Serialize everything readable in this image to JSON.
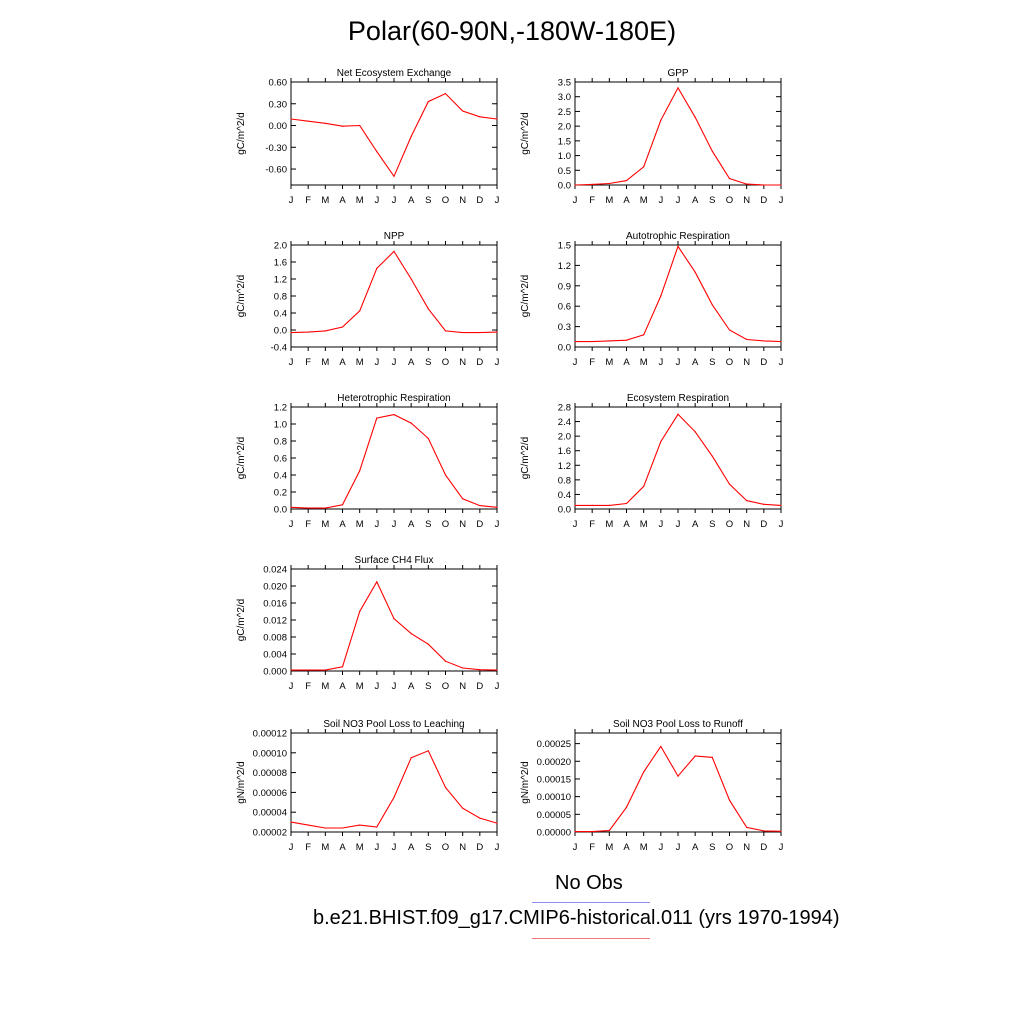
{
  "title": "Polar(60-90N,-180W-180E)",
  "legend": {
    "obs": "No Obs",
    "model": "b.e21.BHIST.f09_g17.CMIP6-historical.011 (yrs 1970-1994)",
    "obs_color": "#8c8cf0",
    "model_color": "#f07878"
  },
  "series_color": "#ff0000",
  "chart_data": [
    {
      "type": "line",
      "title": "Net Ecosystem Exchange",
      "ylabel": "gC/m^2/d",
      "xlabel": "",
      "categories": [
        "J",
        "F",
        "M",
        "A",
        "M",
        "J",
        "J",
        "A",
        "S",
        "O",
        "N",
        "D",
        "J"
      ],
      "ylim": [
        -0.82,
        0.6
      ],
      "yticks": [
        0.6,
        0.3,
        0.0,
        -0.3,
        -0.6
      ],
      "ytick_labels": [
        "0.60",
        "0.30",
        "0.00",
        "-0.30",
        "-0.60"
      ],
      "values": [
        0.09,
        0.06,
        0.03,
        -0.01,
        0.0,
        -0.36,
        -0.7,
        -0.15,
        0.33,
        0.44,
        0.2,
        0.12,
        0.09
      ]
    },
    {
      "type": "line",
      "title": "GPP",
      "ylabel": "gC/m^2/d",
      "xlabel": "",
      "categories": [
        "J",
        "F",
        "M",
        "A",
        "M",
        "J",
        "J",
        "A",
        "S",
        "O",
        "N",
        "D",
        "J"
      ],
      "ylim": [
        0,
        3.5
      ],
      "yticks": [
        0,
        0.5,
        1.0,
        1.5,
        2.0,
        2.5,
        3.0,
        3.5
      ],
      "ytick_labels": [
        "0.0",
        "0.5",
        "1.0",
        "1.5",
        "2.0",
        "2.5",
        "3.0",
        "3.5"
      ],
      "values": [
        0.0,
        0.02,
        0.05,
        0.15,
        0.62,
        2.2,
        3.3,
        2.3,
        1.15,
        0.22,
        0.03,
        0.0,
        0.0
      ]
    },
    {
      "type": "line",
      "title": "NPP",
      "ylabel": "gC/m^2/d",
      "xlabel": "",
      "categories": [
        "J",
        "F",
        "M",
        "A",
        "M",
        "J",
        "J",
        "A",
        "S",
        "O",
        "N",
        "D",
        "J"
      ],
      "ylim": [
        -0.4,
        2.0
      ],
      "yticks": [
        -0.4,
        0.0,
        0.4,
        0.8,
        1.2,
        1.6,
        2.0
      ],
      "ytick_labels": [
        "-0.4",
        "0.0",
        "0.4",
        "0.8",
        "1.2",
        "1.6",
        "2.0"
      ],
      "values": [
        -0.06,
        -0.05,
        -0.02,
        0.07,
        0.45,
        1.45,
        1.85,
        1.2,
        0.5,
        -0.02,
        -0.06,
        -0.06,
        -0.05
      ]
    },
    {
      "type": "line",
      "title": "Autotrophic Respiration",
      "ylabel": "gC/m^2/d",
      "xlabel": "",
      "categories": [
        "J",
        "F",
        "M",
        "A",
        "M",
        "J",
        "J",
        "A",
        "S",
        "O",
        "N",
        "D",
        "J"
      ],
      "ylim": [
        0,
        1.5
      ],
      "yticks": [
        0,
        0.3,
        0.6,
        0.9,
        1.2,
        1.5
      ],
      "ytick_labels": [
        "0.0",
        "0.3",
        "0.6",
        "0.9",
        "1.2",
        "1.5"
      ],
      "values": [
        0.08,
        0.08,
        0.09,
        0.1,
        0.18,
        0.75,
        1.48,
        1.1,
        0.62,
        0.25,
        0.11,
        0.09,
        0.08
      ]
    },
    {
      "type": "line",
      "title": "Heterotrophic Respiration",
      "ylabel": "gC/m^2/d",
      "xlabel": "",
      "categories": [
        "J",
        "F",
        "M",
        "A",
        "M",
        "J",
        "J",
        "A",
        "S",
        "O",
        "N",
        "D",
        "J"
      ],
      "ylim": [
        0,
        1.2
      ],
      "yticks": [
        0,
        0.2,
        0.4,
        0.6,
        0.8,
        1.0,
        1.2
      ],
      "ytick_labels": [
        "0.0",
        "0.2",
        "0.4",
        "0.6",
        "0.8",
        "1.0",
        "1.2"
      ],
      "values": [
        0.02,
        0.01,
        0.01,
        0.05,
        0.45,
        1.07,
        1.11,
        1.01,
        0.83,
        0.4,
        0.12,
        0.04,
        0.02
      ]
    },
    {
      "type": "line",
      "title": "Ecosystem Respiration",
      "ylabel": "gC/m^2/d",
      "xlabel": "",
      "categories": [
        "J",
        "F",
        "M",
        "A",
        "M",
        "J",
        "J",
        "A",
        "S",
        "O",
        "N",
        "D",
        "J"
      ],
      "ylim": [
        0,
        2.8
      ],
      "yticks": [
        0,
        0.4,
        0.8,
        1.2,
        1.6,
        2.0,
        2.4,
        2.8
      ],
      "ytick_labels": [
        "0.0",
        "0.4",
        "0.8",
        "1.2",
        "1.6",
        "2.0",
        "2.4",
        "2.8"
      ],
      "values": [
        0.1,
        0.1,
        0.1,
        0.15,
        0.62,
        1.85,
        2.6,
        2.12,
        1.45,
        0.68,
        0.23,
        0.13,
        0.1
      ]
    },
    {
      "type": "line",
      "title": "Surface CH4 Flux",
      "ylabel": "gC/m^2/d",
      "xlabel": "",
      "categories": [
        "J",
        "F",
        "M",
        "A",
        "M",
        "J",
        "J",
        "A",
        "S",
        "O",
        "N",
        "D",
        "J"
      ],
      "ylim": [
        0,
        0.024
      ],
      "yticks": [
        0,
        0.004,
        0.008,
        0.012,
        0.016,
        0.02,
        0.024
      ],
      "ytick_labels": [
        "0.000",
        "0.004",
        "0.008",
        "0.012",
        "0.016",
        "0.020",
        "0.024"
      ],
      "values": [
        0.0002,
        0.0002,
        0.0002,
        0.001,
        0.014,
        0.021,
        0.0123,
        0.0088,
        0.0063,
        0.0023,
        0.0007,
        0.0003,
        0.0002
      ]
    },
    {
      "type": "line",
      "title": "Soil NO3 Pool Loss to Leaching",
      "ylabel": "gN/m^2/d",
      "xlabel": "",
      "categories": [
        "J",
        "F",
        "M",
        "A",
        "M",
        "J",
        "J",
        "A",
        "S",
        "O",
        "N",
        "D",
        "J"
      ],
      "ylim": [
        2e-05,
        0.00012
      ],
      "yticks": [
        2e-05,
        4e-05,
        6e-05,
        8e-05,
        0.0001,
        0.00012
      ],
      "ytick_labels": [
        "0.00002",
        "0.00004",
        "0.00006",
        "0.00008",
        "0.00010",
        "0.00012"
      ],
      "values": [
        3e-05,
        2.7e-05,
        2.4e-05,
        2.4e-05,
        2.7e-05,
        2.5e-05,
        5.5e-05,
        9.5e-05,
        0.000102,
        6.5e-05,
        4.4e-05,
        3.4e-05,
        2.9e-05
      ]
    },
    {
      "type": "line",
      "title": "Soil NO3 Pool Loss to Runoff",
      "ylabel": "gN/m^2/d",
      "xlabel": "",
      "categories": [
        "J",
        "F",
        "M",
        "A",
        "M",
        "J",
        "J",
        "A",
        "S",
        "O",
        "N",
        "D",
        "J"
      ],
      "ylim": [
        0,
        0.00028
      ],
      "yticks": [
        0,
        5e-05,
        0.0001,
        0.00015,
        0.0002,
        0.00025
      ],
      "ytick_labels": [
        "0.00000",
        "0.00005",
        "0.00010",
        "0.00015",
        "0.00020",
        "0.00025"
      ],
      "values": [
        1e-06,
        1e-06,
        4e-06,
        7e-05,
        0.00017,
        0.000242,
        0.000158,
        0.000215,
        0.000211,
        9e-05,
        1.3e-05,
        3e-06,
        2e-06
      ]
    }
  ]
}
